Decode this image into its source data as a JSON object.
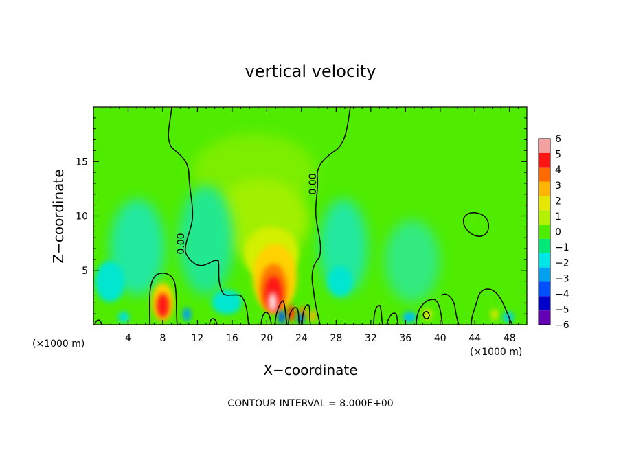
{
  "chart_data": {
    "type": "heatmap",
    "title": "vertical velocity",
    "xlabel": "X−coordinate",
    "ylabel": "Z−coordinate",
    "x_unit_left": "(×1000 m)",
    "x_unit_right": "(×1000 m)",
    "xlim": [
      0,
      50
    ],
    "ylim": [
      0,
      20
    ],
    "x_ticks": [
      4,
      8,
      12,
      16,
      20,
      24,
      28,
      32,
      36,
      40,
      44,
      48
    ],
    "y_ticks": [
      5,
      10,
      15
    ],
    "colorbar": {
      "levels": [
        6,
        5,
        4,
        3,
        2,
        1,
        0,
        -1,
        -2,
        -3,
        -4,
        -5,
        -6
      ],
      "labels": [
        "6",
        "5",
        "4",
        "3",
        "2",
        "1",
        "0",
        "−1",
        "−2",
        "−3",
        "−4",
        "−5",
        "−6"
      ],
      "colors": [
        "#f4a0a0",
        "#ff1414",
        "#ff6a00",
        "#ffb400",
        "#e6e600",
        "#b4f000",
        "#50ec00",
        "#00e878",
        "#00e6e6",
        "#00a0f0",
        "#0050ff",
        "#0000c8",
        "#6400b4"
      ]
    },
    "contour_labels": [
      "0.00",
      "0.00"
    ],
    "footnote": "CONTOUR INTERVAL = 8.000E+00"
  }
}
